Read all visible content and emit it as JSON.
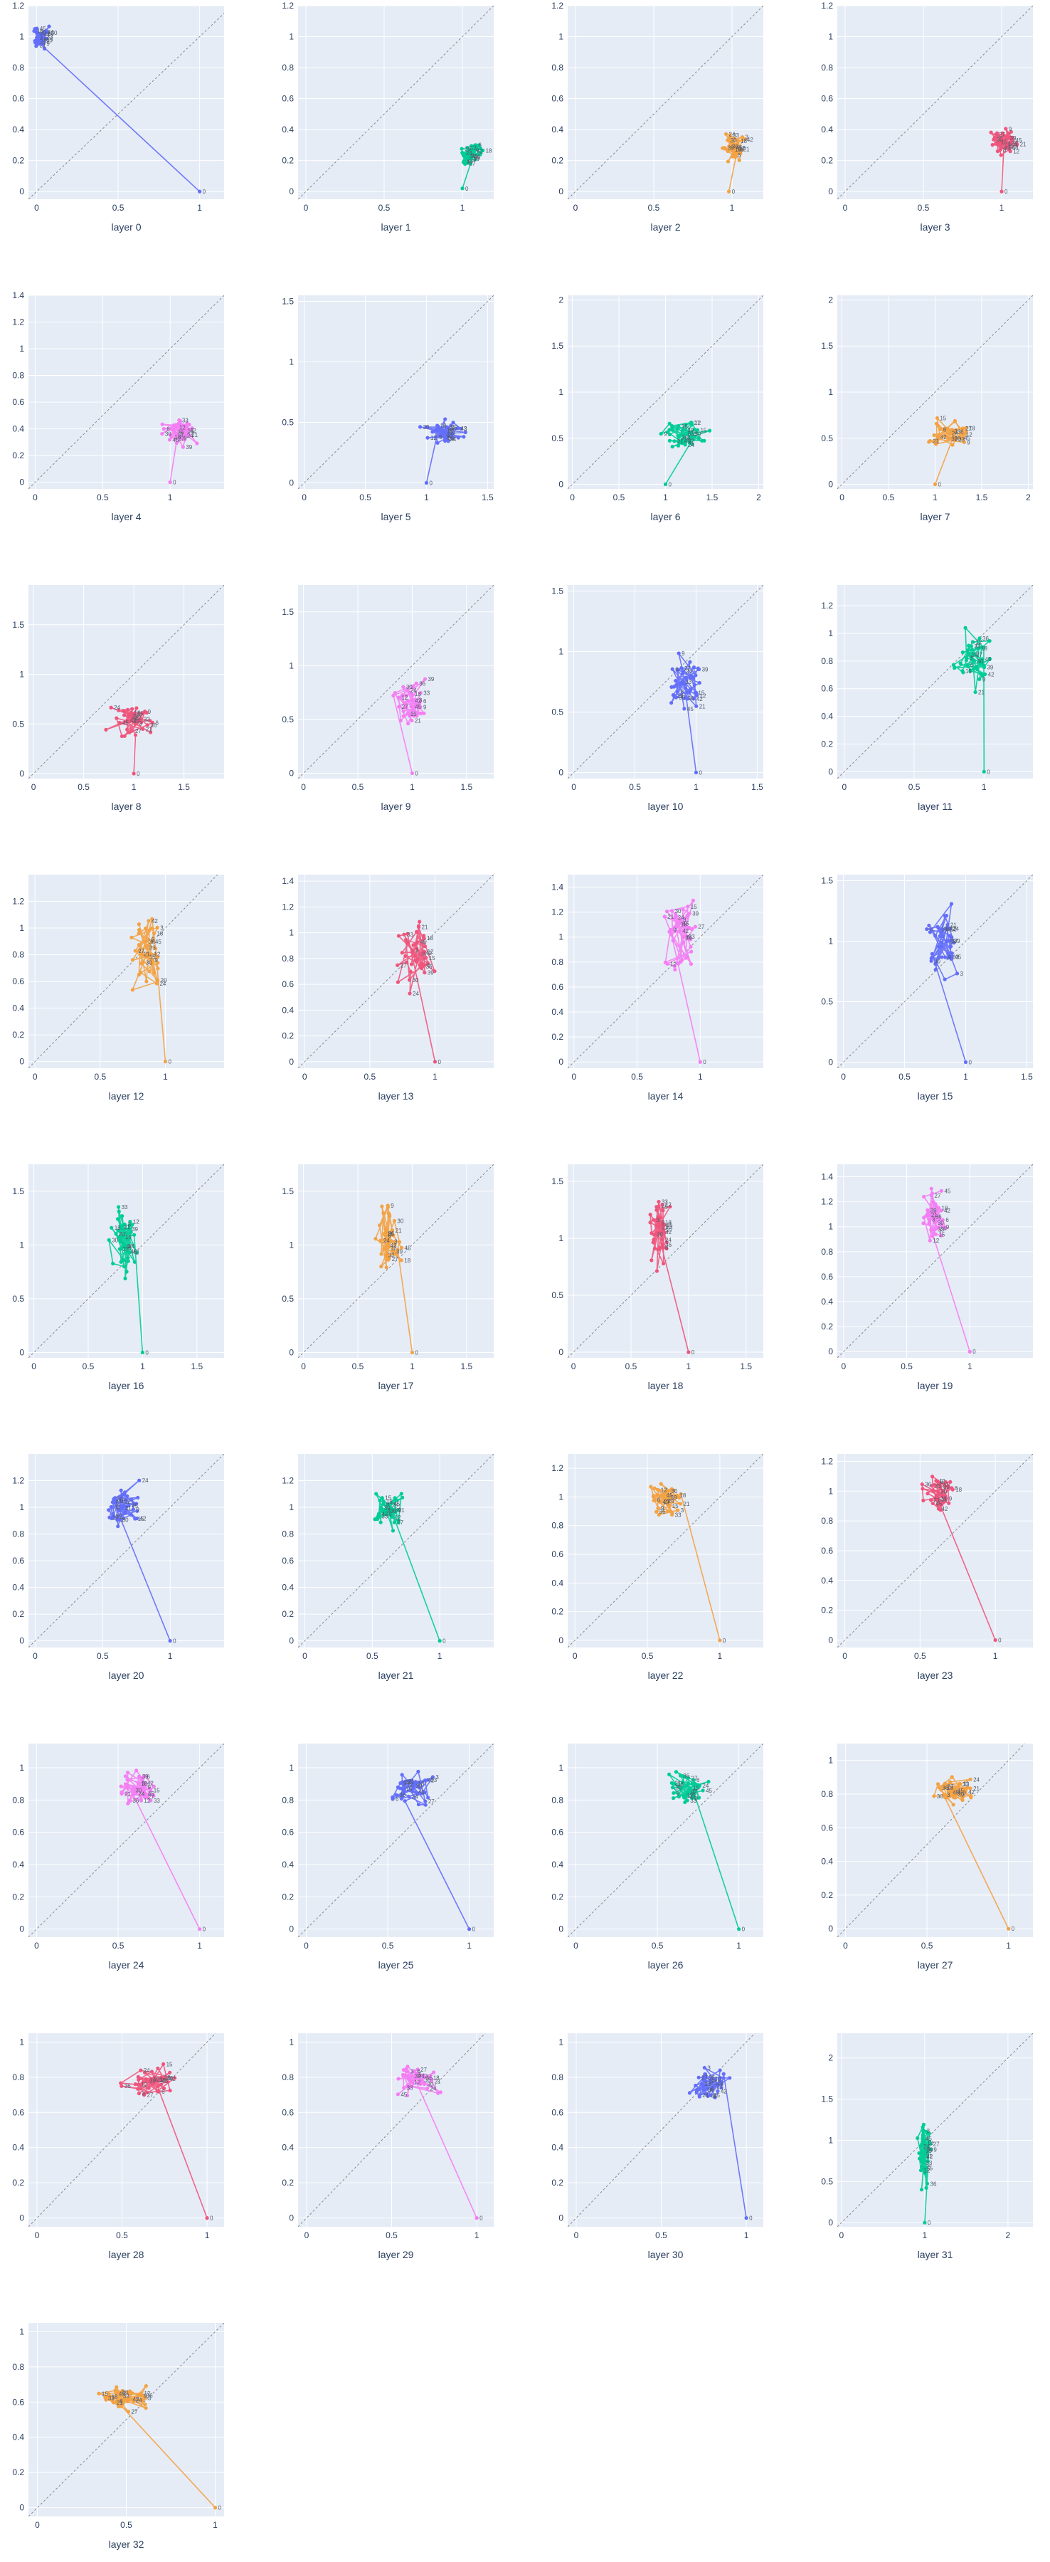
{
  "colors": {
    "background": "#ffffff",
    "plot_bg": "#e5ecf6",
    "grid": "#ffffff",
    "diagonal": "#888888",
    "series_cycle": [
      "#636efa",
      "#00cc96",
      "#f3a244",
      "#ef557c",
      "#f47ef4"
    ]
  },
  "chart_data": {
    "type": "line",
    "layout": "grid",
    "columns": 4,
    "legend": "none",
    "grid": true,
    "diagonal_reference_line": true,
    "point_labels": "token index",
    "panels": [
      {
        "xlabel": "layer 0",
        "color": "#636efa",
        "xlim": [
          -0.05,
          1.15
        ],
        "ylim": [
          -0.05,
          1.2
        ],
        "xticks": [
          0,
          0.5,
          1
        ],
        "yticks": [
          0,
          0.2,
          0.4,
          0.6,
          0.8,
          1,
          1.2
        ],
        "center": [
          0.03,
          1.0
        ],
        "spread": [
          0.04,
          0.06
        ],
        "start": [
          1.0,
          0.0
        ]
      },
      {
        "xlabel": "layer 1",
        "color": "#00cc96",
        "xlim": [
          -0.05,
          1.2
        ],
        "ylim": [
          -0.05,
          1.2
        ],
        "xticks": [
          0,
          0.5,
          1
        ],
        "yticks": [
          0,
          0.2,
          0.4,
          0.6,
          0.8,
          1,
          1.2
        ],
        "center": [
          1.05,
          0.23
        ],
        "spread": [
          0.07,
          0.06
        ],
        "start": [
          1.0,
          0.02
        ]
      },
      {
        "xlabel": "layer 2",
        "color": "#f3a244",
        "xlim": [
          -0.05,
          1.2
        ],
        "ylim": [
          -0.05,
          1.2
        ],
        "xticks": [
          0,
          0.5,
          1
        ],
        "yticks": [
          0,
          0.2,
          0.4,
          0.6,
          0.8,
          1,
          1.2
        ],
        "center": [
          1.02,
          0.28
        ],
        "spread": [
          0.08,
          0.08
        ],
        "start": [
          0.98,
          0.0
        ]
      },
      {
        "xlabel": "layer 3",
        "color": "#ef557c",
        "xlim": [
          -0.05,
          1.2
        ],
        "ylim": [
          -0.05,
          1.2
        ],
        "xticks": [
          0,
          0.5,
          1
        ],
        "yticks": [
          0,
          0.2,
          0.4,
          0.6,
          0.8,
          1,
          1.2
        ],
        "center": [
          1.02,
          0.32
        ],
        "spread": [
          0.08,
          0.07
        ],
        "start": [
          1.0,
          0.0
        ]
      },
      {
        "xlabel": "layer 4",
        "color": "#f47ef4",
        "xlim": [
          -0.05,
          1.4
        ],
        "ylim": [
          -0.05,
          1.4
        ],
        "xticks": [
          0,
          0.5,
          1
        ],
        "yticks": [
          0,
          0.2,
          0.4,
          0.6,
          0.8,
          1,
          1.2,
          1.4
        ],
        "center": [
          1.08,
          0.38
        ],
        "spread": [
          0.12,
          0.08
        ],
        "start": [
          1.0,
          0.0
        ]
      },
      {
        "xlabel": "layer 5",
        "color": "#636efa",
        "xlim": [
          -0.05,
          1.55
        ],
        "ylim": [
          -0.05,
          1.55
        ],
        "xticks": [
          0,
          0.5,
          1,
          1.5
        ],
        "yticks": [
          0,
          0.5,
          1,
          1.5
        ],
        "center": [
          1.15,
          0.42
        ],
        "spread": [
          0.14,
          0.1
        ],
        "start": [
          1.0,
          0.0
        ]
      },
      {
        "xlabel": "layer 6",
        "color": "#00cc96",
        "xlim": [
          -0.05,
          2.05
        ],
        "ylim": [
          -0.05,
          2.05
        ],
        "xticks": [
          0,
          0.5,
          1,
          1.5,
          2
        ],
        "yticks": [
          0,
          0.5,
          1,
          1.5,
          2
        ],
        "center": [
          1.2,
          0.55
        ],
        "spread": [
          0.2,
          0.15
        ],
        "start": [
          1.0,
          0.0
        ]
      },
      {
        "xlabel": "layer 7",
        "color": "#f3a244",
        "xlim": [
          -0.05,
          2.05
        ],
        "ylim": [
          -0.05,
          2.05
        ],
        "xticks": [
          0,
          0.5,
          1,
          1.5,
          2
        ],
        "yticks": [
          0,
          0.5,
          1,
          1.5,
          2
        ],
        "center": [
          1.15,
          0.55
        ],
        "spread": [
          0.2,
          0.12
        ],
        "start": [
          1.0,
          0.0
        ]
      },
      {
        "xlabel": "layer 8",
        "color": "#ef557c",
        "xlim": [
          -0.05,
          1.9
        ],
        "ylim": [
          -0.05,
          1.9
        ],
        "xticks": [
          0,
          0.5,
          1,
          1.5
        ],
        "yticks": [
          0,
          0.5,
          1,
          1.5
        ],
        "center": [
          0.98,
          0.55
        ],
        "spread": [
          0.18,
          0.13
        ],
        "start": [
          1.0,
          0.0
        ]
      },
      {
        "xlabel": "layer 9",
        "color": "#f47ef4",
        "xlim": [
          -0.05,
          1.75
        ],
        "ylim": [
          -0.05,
          1.75
        ],
        "xticks": [
          0,
          0.5,
          1,
          1.5
        ],
        "yticks": [
          0,
          0.5,
          1,
          1.5
        ],
        "center": [
          0.98,
          0.65
        ],
        "spread": [
          0.15,
          0.18
        ],
        "start": [
          1.0,
          0.0
        ]
      },
      {
        "xlabel": "layer 10",
        "color": "#636efa",
        "xlim": [
          -0.05,
          1.55
        ],
        "ylim": [
          -0.05,
          1.55
        ],
        "xticks": [
          0,
          0.5,
          1,
          1.5
        ],
        "yticks": [
          0,
          0.5,
          1,
          1.5
        ],
        "center": [
          0.92,
          0.75
        ],
        "spread": [
          0.12,
          0.2
        ],
        "start": [
          1.0,
          0.0
        ]
      },
      {
        "xlabel": "layer 11",
        "color": "#00cc96",
        "xlim": [
          -0.05,
          1.35
        ],
        "ylim": [
          -0.05,
          1.35
        ],
        "xticks": [
          0,
          0.5,
          1
        ],
        "yticks": [
          0,
          0.2,
          0.4,
          0.6,
          0.8,
          1,
          1.2
        ],
        "center": [
          0.92,
          0.8
        ],
        "spread": [
          0.1,
          0.2
        ],
        "start": [
          1.0,
          0.0
        ]
      },
      {
        "xlabel": "layer 12",
        "color": "#f3a244",
        "xlim": [
          -0.05,
          1.45
        ],
        "ylim": [
          -0.05,
          1.4
        ],
        "xticks": [
          0,
          0.5,
          1
        ],
        "yticks": [
          0,
          0.2,
          0.4,
          0.6,
          0.8,
          1,
          1.2
        ],
        "center": [
          0.85,
          0.85
        ],
        "spread": [
          0.12,
          0.25
        ],
        "start": [
          1.0,
          0.0
        ]
      },
      {
        "xlabel": "layer 13",
        "color": "#ef557c",
        "xlim": [
          -0.05,
          1.45
        ],
        "ylim": [
          -0.05,
          1.45
        ],
        "xticks": [
          0,
          0.5,
          1
        ],
        "yticks": [
          0,
          0.2,
          0.4,
          0.6,
          0.8,
          1,
          1.2,
          1.4
        ],
        "center": [
          0.85,
          0.85
        ],
        "spread": [
          0.1,
          0.25
        ],
        "start": [
          1.0,
          0.0
        ]
      },
      {
        "xlabel": "layer 14",
        "color": "#f47ef4",
        "xlim": [
          -0.05,
          1.5
        ],
        "ylim": [
          -0.05,
          1.5
        ],
        "xticks": [
          0,
          0.5,
          1
        ],
        "yticks": [
          0,
          0.2,
          0.4,
          0.6,
          0.8,
          1,
          1.2,
          1.4
        ],
        "center": [
          0.85,
          1.0
        ],
        "spread": [
          0.1,
          0.25
        ],
        "start": [
          1.0,
          0.0
        ]
      },
      {
        "xlabel": "layer 15",
        "color": "#636efa",
        "xlim": [
          -0.05,
          1.55
        ],
        "ylim": [
          -0.05,
          1.55
        ],
        "xticks": [
          0,
          0.5,
          1,
          1.5
        ],
        "yticks": [
          0,
          0.5,
          1,
          1.5
        ],
        "center": [
          0.82,
          1.0
        ],
        "spread": [
          0.1,
          0.25
        ],
        "start": [
          1.0,
          0.0
        ]
      },
      {
        "xlabel": "layer 16",
        "color": "#00cc96",
        "xlim": [
          -0.05,
          1.75
        ],
        "ylim": [
          -0.05,
          1.75
        ],
        "xticks": [
          0,
          0.5,
          1,
          1.5
        ],
        "yticks": [
          0,
          0.5,
          1,
          1.5
        ],
        "center": [
          0.82,
          1.05
        ],
        "spread": [
          0.1,
          0.28
        ],
        "start": [
          1.0,
          0.0
        ]
      },
      {
        "xlabel": "layer 17",
        "color": "#f3a244",
        "xlim": [
          -0.05,
          1.75
        ],
        "ylim": [
          -0.05,
          1.75
        ],
        "xticks": [
          0,
          0.5,
          1,
          1.5
        ],
        "yticks": [
          0,
          0.5,
          1,
          1.5
        ],
        "center": [
          0.78,
          1.05
        ],
        "spread": [
          0.1,
          0.28
        ],
        "start": [
          1.0,
          0.0
        ]
      },
      {
        "xlabel": "layer 18",
        "color": "#ef557c",
        "xlim": [
          -0.05,
          1.65
        ],
        "ylim": [
          -0.05,
          1.65
        ],
        "xticks": [
          0,
          0.5,
          1,
          1.5
        ],
        "yticks": [
          0,
          0.5,
          1,
          1.5
        ],
        "center": [
          0.75,
          1.05
        ],
        "spread": [
          0.08,
          0.25
        ],
        "start": [
          1.0,
          0.0
        ]
      },
      {
        "xlabel": "layer 19",
        "color": "#f47ef4",
        "xlim": [
          -0.05,
          1.5
        ],
        "ylim": [
          -0.05,
          1.5
        ],
        "xticks": [
          0,
          0.5,
          1
        ],
        "yticks": [
          0,
          0.2,
          0.4,
          0.6,
          0.8,
          1,
          1.2,
          1.4
        ],
        "center": [
          0.72,
          1.08
        ],
        "spread": [
          0.08,
          0.2
        ],
        "start": [
          1.0,
          0.0
        ]
      },
      {
        "xlabel": "layer 20",
        "color": "#636efa",
        "xlim": [
          -0.05,
          1.4
        ],
        "ylim": [
          -0.05,
          1.4
        ],
        "xticks": [
          0,
          0.5,
          1
        ],
        "yticks": [
          0,
          0.2,
          0.4,
          0.6,
          0.8,
          1,
          1.2
        ],
        "center": [
          0.65,
          1.0
        ],
        "spread": [
          0.1,
          0.14
        ],
        "start": [
          1.0,
          0.0
        ]
      },
      {
        "xlabel": "layer 21",
        "color": "#00cc96",
        "xlim": [
          -0.05,
          1.4
        ],
        "ylim": [
          -0.05,
          1.4
        ],
        "xticks": [
          0,
          0.5,
          1
        ],
        "yticks": [
          0,
          0.2,
          0.4,
          0.6,
          0.8,
          1,
          1.2
        ],
        "center": [
          0.62,
          1.0
        ],
        "spread": [
          0.1,
          0.13
        ],
        "start": [
          1.0,
          0.0
        ]
      },
      {
        "xlabel": "layer 22",
        "color": "#f3a244",
        "xlim": [
          -0.05,
          1.3
        ],
        "ylim": [
          -0.05,
          1.3
        ],
        "xticks": [
          0,
          0.5,
          1
        ],
        "yticks": [
          0,
          0.2,
          0.4,
          0.6,
          0.8,
          1,
          1.2
        ],
        "center": [
          0.62,
          0.98
        ],
        "spread": [
          0.1,
          0.1
        ],
        "start": [
          1.0,
          0.0
        ]
      },
      {
        "xlabel": "layer 23",
        "color": "#ef557c",
        "xlim": [
          -0.05,
          1.25
        ],
        "ylim": [
          -0.05,
          1.25
        ],
        "xticks": [
          0,
          0.5,
          1
        ],
        "yticks": [
          0,
          0.2,
          0.4,
          0.6,
          0.8,
          1,
          1.2
        ],
        "center": [
          0.62,
          0.98
        ],
        "spread": [
          0.1,
          0.1
        ],
        "start": [
          1.0,
          0.0
        ]
      },
      {
        "xlabel": "layer 24",
        "color": "#f47ef4",
        "xlim": [
          -0.05,
          1.15
        ],
        "ylim": [
          -0.05,
          1.15
        ],
        "xticks": [
          0,
          0.5,
          1
        ],
        "yticks": [
          0,
          0.2,
          0.4,
          0.6,
          0.8,
          1
        ],
        "center": [
          0.62,
          0.88
        ],
        "spread": [
          0.1,
          0.08
        ],
        "start": [
          1.0,
          0.0
        ]
      },
      {
        "xlabel": "layer 25",
        "color": "#636efa",
        "xlim": [
          -0.05,
          1.15
        ],
        "ylim": [
          -0.05,
          1.15
        ],
        "xticks": [
          0,
          0.5,
          1
        ],
        "yticks": [
          0,
          0.2,
          0.4,
          0.6,
          0.8,
          1
        ],
        "center": [
          0.65,
          0.88
        ],
        "spread": [
          0.1,
          0.08
        ],
        "start": [
          1.0,
          0.0
        ]
      },
      {
        "xlabel": "layer 26",
        "color": "#00cc96",
        "xlim": [
          -0.05,
          1.15
        ],
        "ylim": [
          -0.05,
          1.15
        ],
        "xticks": [
          0,
          0.5,
          1
        ],
        "yticks": [
          0,
          0.2,
          0.4,
          0.6,
          0.8,
          1
        ],
        "center": [
          0.68,
          0.88
        ],
        "spread": [
          0.1,
          0.08
        ],
        "start": [
          1.0,
          0.0
        ]
      },
      {
        "xlabel": "layer 27",
        "color": "#f3a244",
        "xlim": [
          -0.05,
          1.15
        ],
        "ylim": [
          -0.05,
          1.1
        ],
        "xticks": [
          0,
          0.5,
          1
        ],
        "yticks": [
          0,
          0.2,
          0.4,
          0.6,
          0.8,
          1
        ],
        "center": [
          0.68,
          0.82
        ],
        "spread": [
          0.12,
          0.07
        ],
        "start": [
          1.0,
          0.0
        ]
      },
      {
        "xlabel": "layer 28",
        "color": "#ef557c",
        "xlim": [
          -0.05,
          1.1
        ],
        "ylim": [
          -0.05,
          1.05
        ],
        "xticks": [
          0,
          0.5,
          1
        ],
        "yticks": [
          0,
          0.2,
          0.4,
          0.6,
          0.8,
          1
        ],
        "center": [
          0.66,
          0.78
        ],
        "spread": [
          0.12,
          0.08
        ],
        "start": [
          1.0,
          0.0
        ]
      },
      {
        "xlabel": "layer 29",
        "color": "#f47ef4",
        "xlim": [
          -0.05,
          1.1
        ],
        "ylim": [
          -0.05,
          1.05
        ],
        "xticks": [
          0,
          0.5,
          1
        ],
        "yticks": [
          0,
          0.2,
          0.4,
          0.6,
          0.8,
          1
        ],
        "center": [
          0.64,
          0.78
        ],
        "spread": [
          0.12,
          0.08
        ],
        "start": [
          1.0,
          0.0
        ]
      },
      {
        "xlabel": "layer 30",
        "color": "#636efa",
        "xlim": [
          -0.05,
          1.1
        ],
        "ylim": [
          -0.05,
          1.05
        ],
        "xticks": [
          0,
          0.5,
          1
        ],
        "yticks": [
          0,
          0.2,
          0.4,
          0.6,
          0.8,
          1
        ],
        "center": [
          0.78,
          0.76
        ],
        "spread": [
          0.1,
          0.08
        ],
        "start": [
          1.0,
          0.0
        ]
      },
      {
        "xlabel": "layer 31",
        "color": "#00cc96",
        "xlim": [
          -0.05,
          2.3
        ],
        "ylim": [
          -0.05,
          2.3
        ],
        "xticks": [
          0,
          1,
          2
        ],
        "yticks": [
          0,
          0.5,
          1,
          1.5,
          2
        ],
        "center": [
          1.0,
          0.9
        ],
        "spread": [
          0.08,
          0.35
        ],
        "start": [
          1.0,
          0.0
        ]
      },
      {
        "xlabel": "layer 32",
        "color": "#f3a244",
        "xlim": [
          -0.05,
          1.05
        ],
        "ylim": [
          -0.05,
          1.05
        ],
        "xticks": [
          0,
          0.5,
          1
        ],
        "yticks": [
          0,
          0.2,
          0.4,
          0.6,
          0.8,
          1
        ],
        "center": [
          0.5,
          0.62
        ],
        "spread": [
          0.1,
          0.06
        ],
        "start": [
          1.0,
          0.0
        ]
      }
    ]
  }
}
